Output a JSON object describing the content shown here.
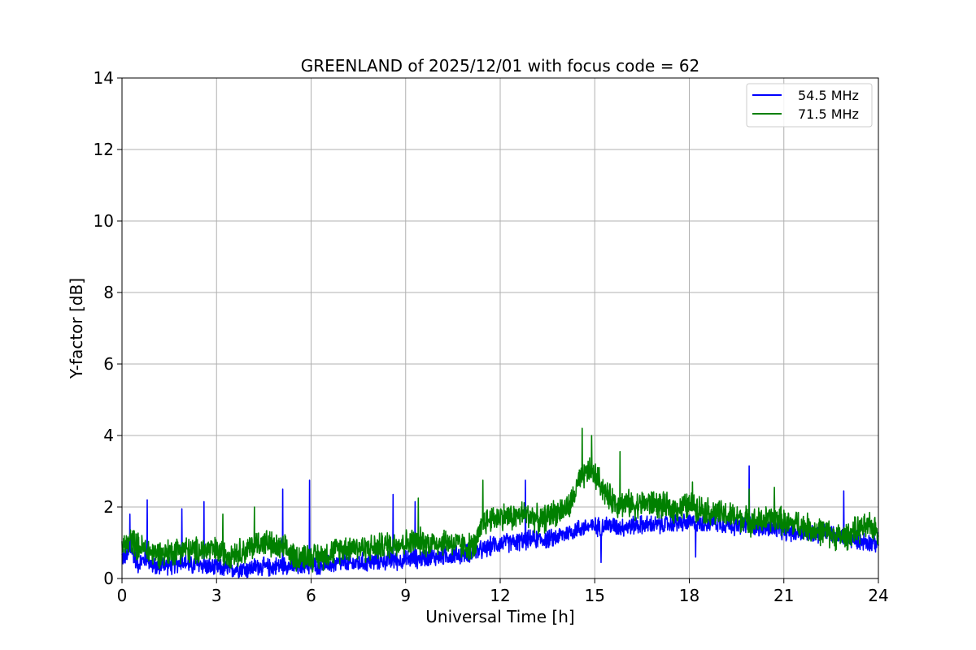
{
  "chart_data": {
    "type": "line",
    "title": "GREENLAND of 2025/12/01 with focus code = 62",
    "xlabel": "Universal Time [h]",
    "ylabel": "Y-factor [dB]",
    "xlim": [
      0,
      24
    ],
    "ylim": [
      0,
      14
    ],
    "xticks": [
      "0",
      "3",
      "6",
      "9",
      "12",
      "15",
      "18",
      "21",
      "24"
    ],
    "yticks": [
      "0",
      "2",
      "4",
      "6",
      "8",
      "10",
      "12",
      "14"
    ],
    "grid": true,
    "legend_position": "top-right",
    "series": [
      {
        "name": "54.5 MHz",
        "color": "#0000ff",
        "points": [
          [
            0.1,
            0.6
          ],
          [
            0.3,
            0.8
          ],
          [
            0.5,
            0.4
          ],
          [
            0.8,
            0.6
          ],
          [
            1.0,
            0.3
          ],
          [
            1.3,
            0.4
          ],
          [
            1.6,
            0.35
          ],
          [
            1.9,
            0.5
          ],
          [
            2.2,
            0.35
          ],
          [
            2.5,
            0.4
          ],
          [
            2.8,
            0.3
          ],
          [
            3.1,
            0.3
          ],
          [
            3.4,
            0.25
          ],
          [
            3.7,
            0.3
          ],
          [
            4.0,
            0.25
          ],
          [
            4.3,
            0.35
          ],
          [
            4.6,
            0.3
          ],
          [
            4.9,
            0.35
          ],
          [
            5.2,
            0.4
          ],
          [
            5.5,
            0.3
          ],
          [
            5.8,
            0.4
          ],
          [
            6.1,
            0.35
          ],
          [
            6.4,
            0.4
          ],
          [
            6.7,
            0.4
          ],
          [
            7.0,
            0.45
          ],
          [
            7.3,
            0.4
          ],
          [
            7.6,
            0.45
          ],
          [
            7.9,
            0.45
          ],
          [
            8.2,
            0.5
          ],
          [
            8.5,
            0.5
          ],
          [
            8.8,
            0.5
          ],
          [
            9.1,
            0.55
          ],
          [
            9.4,
            0.55
          ],
          [
            9.7,
            0.6
          ],
          [
            10.0,
            0.6
          ],
          [
            10.3,
            0.65
          ],
          [
            10.6,
            0.65
          ],
          [
            10.9,
            0.7
          ],
          [
            11.2,
            0.75
          ],
          [
            11.5,
            0.8
          ],
          [
            11.8,
            0.95
          ],
          [
            12.1,
            1.0
          ],
          [
            12.4,
            1.0
          ],
          [
            12.7,
            1.05
          ],
          [
            13.0,
            1.1
          ],
          [
            13.3,
            1.1
          ],
          [
            13.6,
            1.1
          ],
          [
            13.9,
            1.2
          ],
          [
            14.2,
            1.3
          ],
          [
            14.5,
            1.4
          ],
          [
            14.8,
            1.45
          ],
          [
            15.1,
            1.45
          ],
          [
            15.4,
            1.5
          ],
          [
            15.7,
            1.45
          ],
          [
            16.0,
            1.45
          ],
          [
            16.3,
            1.5
          ],
          [
            16.6,
            1.5
          ],
          [
            16.9,
            1.5
          ],
          [
            17.2,
            1.5
          ],
          [
            17.5,
            1.55
          ],
          [
            17.8,
            1.55
          ],
          [
            18.1,
            1.55
          ],
          [
            18.4,
            1.55
          ],
          [
            18.7,
            1.6
          ],
          [
            19.0,
            1.55
          ],
          [
            19.3,
            1.5
          ],
          [
            19.6,
            1.45
          ],
          [
            19.9,
            1.5
          ],
          [
            20.2,
            1.45
          ],
          [
            20.5,
            1.4
          ],
          [
            20.8,
            1.35
          ],
          [
            21.1,
            1.3
          ],
          [
            21.4,
            1.3
          ],
          [
            21.7,
            1.3
          ],
          [
            22.0,
            1.25
          ],
          [
            22.3,
            1.3
          ],
          [
            22.6,
            1.2
          ],
          [
            22.9,
            1.15
          ],
          [
            23.2,
            1.1
          ],
          [
            23.5,
            1.05
          ],
          [
            23.8,
            1.0
          ],
          [
            24.0,
            1.0
          ]
        ],
        "spikes": [
          [
            0.25,
            1.8
          ],
          [
            0.8,
            2.2
          ],
          [
            1.9,
            1.95
          ],
          [
            2.6,
            2.15
          ],
          [
            5.1,
            2.5
          ],
          [
            5.95,
            2.75
          ],
          [
            8.6,
            2.35
          ],
          [
            9.3,
            2.15
          ],
          [
            12.8,
            2.75
          ],
          [
            15.2,
            0.45
          ],
          [
            18.2,
            0.6
          ],
          [
            19.9,
            3.15
          ],
          [
            22.9,
            2.45
          ]
        ]
      },
      {
        "name": "71.5 MHz",
        "color": "#008000",
        "points": [
          [
            0.1,
            0.9
          ],
          [
            0.3,
            1.1
          ],
          [
            0.5,
            0.9
          ],
          [
            0.8,
            0.8
          ],
          [
            1.0,
            0.7
          ],
          [
            1.3,
            0.7
          ],
          [
            1.6,
            0.75
          ],
          [
            1.9,
            0.85
          ],
          [
            2.2,
            0.75
          ],
          [
            2.5,
            0.8
          ],
          [
            2.8,
            0.8
          ],
          [
            3.1,
            0.75
          ],
          [
            3.4,
            0.7
          ],
          [
            3.7,
            0.75
          ],
          [
            4.0,
            0.8
          ],
          [
            4.3,
            1.0
          ],
          [
            4.6,
            1.0
          ],
          [
            4.9,
            0.85
          ],
          [
            5.2,
            0.8
          ],
          [
            5.5,
            0.6
          ],
          [
            5.8,
            0.65
          ],
          [
            6.1,
            0.6
          ],
          [
            6.4,
            0.65
          ],
          [
            6.7,
            0.75
          ],
          [
            7.0,
            0.85
          ],
          [
            7.3,
            0.9
          ],
          [
            7.6,
            0.85
          ],
          [
            7.9,
            0.85
          ],
          [
            8.2,
            0.9
          ],
          [
            8.5,
            0.95
          ],
          [
            8.8,
            1.0
          ],
          [
            9.1,
            1.0
          ],
          [
            9.4,
            1.05
          ],
          [
            9.7,
            1.0
          ],
          [
            10.0,
            1.0
          ],
          [
            10.3,
            1.05
          ],
          [
            10.6,
            0.95
          ],
          [
            10.9,
            0.9
          ],
          [
            11.2,
            0.9
          ],
          [
            11.5,
            1.6
          ],
          [
            11.8,
            1.7
          ],
          [
            12.1,
            1.75
          ],
          [
            12.4,
            1.7
          ],
          [
            12.7,
            1.8
          ],
          [
            13.0,
            1.75
          ],
          [
            13.3,
            1.6
          ],
          [
            13.6,
            1.8
          ],
          [
            13.9,
            1.9
          ],
          [
            14.2,
            2.0
          ],
          [
            14.5,
            2.7
          ],
          [
            14.8,
            3.0
          ],
          [
            15.1,
            2.8
          ],
          [
            15.4,
            2.3
          ],
          [
            15.7,
            2.1
          ],
          [
            16.0,
            2.1
          ],
          [
            16.3,
            2.05
          ],
          [
            16.6,
            2.1
          ],
          [
            16.9,
            2.1
          ],
          [
            17.2,
            2.0
          ],
          [
            17.5,
            1.95
          ],
          [
            17.8,
            2.0
          ],
          [
            18.1,
            2.05
          ],
          [
            18.4,
            1.95
          ],
          [
            18.7,
            1.85
          ],
          [
            19.0,
            1.8
          ],
          [
            19.3,
            1.75
          ],
          [
            19.6,
            1.7
          ],
          [
            19.9,
            1.6
          ],
          [
            20.2,
            1.6
          ],
          [
            20.5,
            1.65
          ],
          [
            20.8,
            1.7
          ],
          [
            21.1,
            1.5
          ],
          [
            21.4,
            1.55
          ],
          [
            21.7,
            1.45
          ],
          [
            22.0,
            1.35
          ],
          [
            22.3,
            1.3
          ],
          [
            22.6,
            1.2
          ],
          [
            22.9,
            1.15
          ],
          [
            23.2,
            1.3
          ],
          [
            23.5,
            1.4
          ],
          [
            23.8,
            1.45
          ],
          [
            24.0,
            1.3
          ]
        ],
        "spikes": [
          [
            3.2,
            1.8
          ],
          [
            4.2,
            2.0
          ],
          [
            9.4,
            2.25
          ],
          [
            11.45,
            2.75
          ],
          [
            14.6,
            4.2
          ],
          [
            14.9,
            4.0
          ],
          [
            15.8,
            3.55
          ],
          [
            18.1,
            2.7
          ],
          [
            19.9,
            2.5
          ],
          [
            20.7,
            2.55
          ]
        ]
      }
    ]
  }
}
